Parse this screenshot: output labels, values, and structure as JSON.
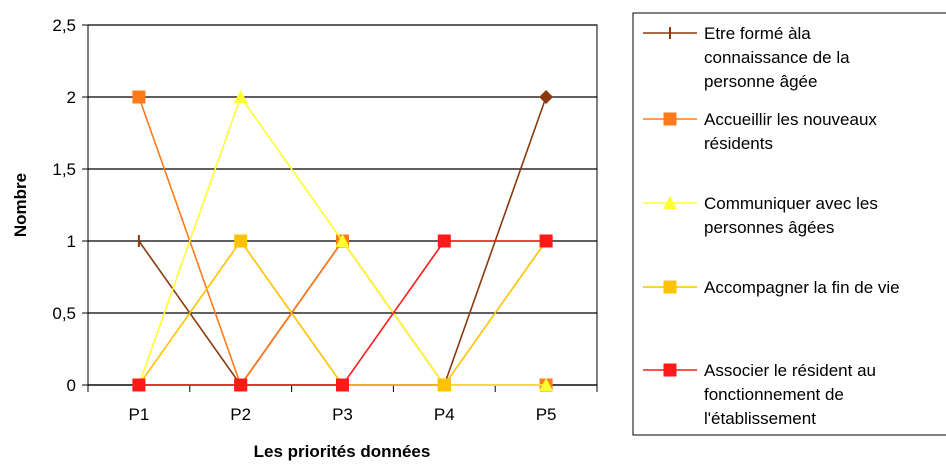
{
  "chart_data": {
    "type": "line",
    "categories": [
      "P1",
      "P2",
      "P3",
      "P4",
      "P5"
    ],
    "ylim": [
      0,
      2.5
    ],
    "yticks": [
      "0",
      "0,5",
      "1",
      "1,5",
      "2",
      "2,5"
    ],
    "ytick_values": [
      0,
      0.5,
      1,
      1.5,
      2,
      2.5
    ],
    "xlabel": "Les priorités données",
    "ylabel": "Nombre",
    "grid": "horizontal",
    "legend_position": "right",
    "series": [
      {
        "name": "Etre formé àla connaissance de la personne âgée",
        "legend_lines": [
          "Etre formé àla",
          "connaissance de la",
          "personne âgée"
        ],
        "values": [
          1,
          0,
          1,
          0,
          2
        ],
        "color": "#8B3A0E",
        "marker": "dash",
        "end_marker": "diamond"
      },
      {
        "name": "Accueillir les nouveaux résidents",
        "legend_lines": [
          "Accueillir les nouveaux",
          "résidents"
        ],
        "values": [
          2,
          0,
          1,
          0,
          0
        ],
        "color": "#FF7A1A",
        "marker": "square"
      },
      {
        "name": "Communiquer avec les personnes âgées",
        "legend_lines": [
          "Communiquer avec les",
          "personnes âgées"
        ],
        "values": [
          0,
          2,
          1,
          0,
          0
        ],
        "color": "#FFFF33",
        "marker": "triangle"
      },
      {
        "name": "Accompagner la fin de vie",
        "legend_lines": [
          "Accompagner la fin de vie"
        ],
        "values": [
          0,
          1,
          0,
          0,
          1
        ],
        "color": "#FFC200",
        "marker": "square"
      },
      {
        "name": "Associer le résident au fonctionnement de l'établissement",
        "legend_lines": [
          "Associer le résident au",
          "fonctionnement de",
          "l'établissement"
        ],
        "values": [
          0,
          0,
          0,
          1,
          1
        ],
        "color": "#FF1A1A",
        "marker": "square"
      }
    ]
  }
}
